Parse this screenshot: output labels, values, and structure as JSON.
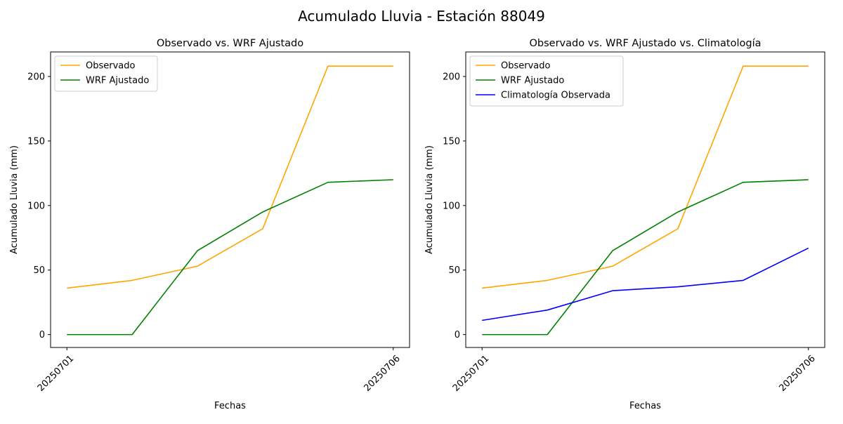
{
  "figure": {
    "suptitle": "Acumulado Lluvia - Estación 88049"
  },
  "colors": {
    "observado": "#FFA500",
    "wrf": "#008000",
    "climatologia": "#0000FF"
  },
  "chart_data": [
    {
      "type": "line",
      "title": "Observado vs. WRF Ajustado",
      "xlabel": "Fechas",
      "ylabel": "Acumulado Lluvia (mm)",
      "x": [
        0,
        1,
        2,
        3,
        4,
        5
      ],
      "xtick_labels": [
        "20250701",
        "20250706"
      ],
      "xtick_positions": [
        0,
        5
      ],
      "ylim": [
        -10,
        219
      ],
      "yticks": [
        0,
        50,
        100,
        150,
        200
      ],
      "legend": "upper-left",
      "grid": false,
      "series": [
        {
          "name": "Observado",
          "color": "#FFA500",
          "values": [
            36,
            42,
            53,
            82,
            208,
            208
          ]
        },
        {
          "name": "WRF Ajustado",
          "color": "#008000",
          "values": [
            0,
            0,
            65,
            95,
            118,
            120
          ]
        }
      ]
    },
    {
      "type": "line",
      "title": "Observado vs. WRF Ajustado vs. Climatología",
      "xlabel": "Fechas",
      "ylabel": "Acumulado Lluvia (mm)",
      "x": [
        0,
        1,
        2,
        3,
        4,
        5
      ],
      "xtick_labels": [
        "20250701",
        "20250706"
      ],
      "xtick_positions": [
        0,
        5
      ],
      "ylim": [
        -10,
        219
      ],
      "yticks": [
        0,
        50,
        100,
        150,
        200
      ],
      "legend": "upper-left",
      "grid": false,
      "series": [
        {
          "name": "Observado",
          "color": "#FFA500",
          "values": [
            36,
            42,
            53,
            82,
            208,
            208
          ]
        },
        {
          "name": "WRF Ajustado",
          "color": "#008000",
          "values": [
            0,
            0,
            65,
            95,
            118,
            120
          ]
        },
        {
          "name": "Climatología Observada",
          "color": "#0000FF",
          "values": [
            11,
            19,
            34,
            37,
            42,
            67
          ]
        }
      ]
    }
  ]
}
